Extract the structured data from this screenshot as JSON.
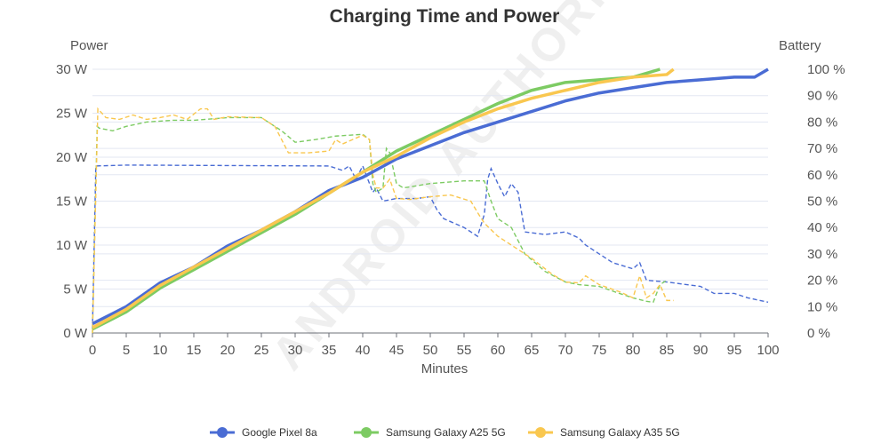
{
  "chart_data": {
    "type": "line",
    "title": "Charging Time and Power",
    "xlabel": "Minutes",
    "ylabel_left": "Power",
    "ylabel_right": "Battery",
    "xlim": [
      0,
      100
    ],
    "ylim_left": [
      0,
      30
    ],
    "ylim_right": [
      0,
      100
    ],
    "x_ticks": [
      "0",
      "5",
      "10",
      "15",
      "20",
      "25",
      "30",
      "35",
      "40",
      "45",
      "50",
      "55",
      "60",
      "65",
      "70",
      "75",
      "80",
      "85",
      "90",
      "95",
      "100"
    ],
    "left_ticks": [
      "0 W",
      "5 W",
      "10 W",
      "15 W",
      "20 W",
      "25 W",
      "30 W"
    ],
    "right_ticks": [
      "0 %",
      "10 %",
      "20 %",
      "30 %",
      "40 %",
      "50 %",
      "60 %",
      "70 %",
      "80 %",
      "90 %",
      "100 %"
    ],
    "grid": true,
    "legend_position": "bottom",
    "watermark": "ANDROID AUTHORITY",
    "series": [
      {
        "name": "Google Pixel 8a",
        "color": "#4a6cd4",
        "battery": [
          [
            0,
            3.5
          ],
          [
            5,
            10
          ],
          [
            10,
            19
          ],
          [
            15,
            25
          ],
          [
            20,
            33
          ],
          [
            25,
            39
          ],
          [
            30,
            46
          ],
          [
            35,
            54
          ],
          [
            40,
            59
          ],
          [
            45,
            66
          ],
          [
            50,
            71
          ],
          [
            55,
            76
          ],
          [
            60,
            80
          ],
          [
            65,
            84
          ],
          [
            70,
            88
          ],
          [
            75,
            91
          ],
          [
            80,
            93
          ],
          [
            85,
            95
          ],
          [
            90,
            96
          ],
          [
            95,
            97
          ],
          [
            98,
            97
          ],
          [
            100,
            100
          ]
        ],
        "power": [
          [
            0,
            0.5
          ],
          [
            0.5,
            19
          ],
          [
            5,
            19.1
          ],
          [
            35,
            19
          ],
          [
            37,
            18.5
          ],
          [
            38,
            19
          ],
          [
            39,
            17.5
          ],
          [
            40,
            19
          ],
          [
            41.5,
            16
          ],
          [
            42,
            16.5
          ],
          [
            43,
            15
          ],
          [
            45,
            15.3
          ],
          [
            48,
            15.3
          ],
          [
            50,
            15.5
          ],
          [
            51,
            14
          ],
          [
            52,
            13
          ],
          [
            55,
            12
          ],
          [
            57,
            11
          ],
          [
            58,
            13.5
          ],
          [
            58.5,
            17.5
          ],
          [
            59,
            18.7
          ],
          [
            60,
            17
          ],
          [
            61,
            15.5
          ],
          [
            62,
            17
          ],
          [
            63,
            16
          ],
          [
            64,
            11.5
          ],
          [
            67,
            11.2
          ],
          [
            70,
            11.5
          ],
          [
            72,
            10.8
          ],
          [
            73,
            10
          ],
          [
            75,
            9
          ],
          [
            77,
            8
          ],
          [
            80,
            7.3
          ],
          [
            81,
            8
          ],
          [
            82,
            6
          ],
          [
            85,
            5.8
          ],
          [
            90,
            5.3
          ],
          [
            92,
            4.5
          ],
          [
            95,
            4.5
          ],
          [
            97,
            4
          ],
          [
            100,
            3.5
          ]
        ]
      },
      {
        "name": "Samsung Galaxy A25 5G",
        "color": "#7dcb63",
        "battery": [
          [
            0,
            1.5
          ],
          [
            5,
            8
          ],
          [
            10,
            17
          ],
          [
            15,
            24
          ],
          [
            20,
            31
          ],
          [
            25,
            38
          ],
          [
            30,
            45
          ],
          [
            35,
            53
          ],
          [
            40,
            61
          ],
          [
            45,
            69
          ],
          [
            50,
            75
          ],
          [
            55,
            81
          ],
          [
            60,
            87
          ],
          [
            65,
            92
          ],
          [
            70,
            95
          ],
          [
            75,
            96
          ],
          [
            80,
            97
          ],
          [
            84,
            100
          ]
        ],
        "power": [
          [
            0,
            0
          ],
          [
            0.7,
            23.5
          ],
          [
            1,
            23.3
          ],
          [
            3,
            23
          ],
          [
            5,
            23.5
          ],
          [
            8,
            24
          ],
          [
            12,
            24.2
          ],
          [
            15,
            24.2
          ],
          [
            20,
            24.5
          ],
          [
            25,
            24.5
          ],
          [
            27,
            23.5
          ],
          [
            28,
            23
          ],
          [
            30,
            21.7
          ],
          [
            33,
            22
          ],
          [
            36,
            22.4
          ],
          [
            40,
            22.6
          ],
          [
            41,
            22
          ],
          [
            41.5,
            17
          ],
          [
            42,
            16
          ],
          [
            43,
            16.5
          ],
          [
            43.5,
            21
          ],
          [
            44,
            20.5
          ],
          [
            45,
            17
          ],
          [
            46,
            16.5
          ],
          [
            50,
            17
          ],
          [
            55,
            17.3
          ],
          [
            58,
            17.3
          ],
          [
            59,
            15
          ],
          [
            60,
            13
          ],
          [
            62,
            12
          ],
          [
            64,
            9
          ],
          [
            67,
            7
          ],
          [
            70,
            5.8
          ],
          [
            72,
            5.5
          ],
          [
            75,
            5.3
          ],
          [
            78,
            4.5
          ],
          [
            80,
            4
          ],
          [
            82,
            3.6
          ],
          [
            83,
            3.5
          ],
          [
            84,
            5.5
          ],
          [
            85,
            6
          ]
        ]
      },
      {
        "name": "Samsung Galaxy A35 5G",
        "color": "#f9c74f",
        "battery": [
          [
            0,
            2
          ],
          [
            5,
            9
          ],
          [
            10,
            18
          ],
          [
            15,
            25
          ],
          [
            20,
            32
          ],
          [
            25,
            39
          ],
          [
            30,
            46
          ],
          [
            35,
            53
          ],
          [
            40,
            61
          ],
          [
            45,
            67
          ],
          [
            50,
            74
          ],
          [
            55,
            80
          ],
          [
            60,
            85
          ],
          [
            65,
            89
          ],
          [
            70,
            92
          ],
          [
            75,
            95
          ],
          [
            80,
            97
          ],
          [
            85,
            98
          ],
          [
            86,
            100
          ]
        ],
        "power": [
          [
            0,
            0
          ],
          [
            0.8,
            25.5
          ],
          [
            2,
            24.5
          ],
          [
            4,
            24.3
          ],
          [
            6,
            24.8
          ],
          [
            8,
            24.3
          ],
          [
            10,
            24.5
          ],
          [
            12,
            24.8
          ],
          [
            14,
            24.3
          ],
          [
            16,
            25.5
          ],
          [
            17,
            25.5
          ],
          [
            18,
            24.3
          ],
          [
            20,
            24.6
          ],
          [
            25,
            24.5
          ],
          [
            27,
            23.5
          ],
          [
            28,
            22
          ],
          [
            29,
            20.5
          ],
          [
            32,
            20.5
          ],
          [
            35,
            20.7
          ],
          [
            36,
            22
          ],
          [
            37,
            21.5
          ],
          [
            40,
            22.5
          ],
          [
            41,
            22
          ],
          [
            41.5,
            18
          ],
          [
            42,
            16.5
          ],
          [
            43,
            16.5
          ],
          [
            44,
            17.5
          ],
          [
            45,
            15.3
          ],
          [
            47,
            15.2
          ],
          [
            50,
            15.5
          ],
          [
            53,
            15.7
          ],
          [
            56,
            15
          ],
          [
            57,
            13.7
          ],
          [
            58,
            12.5
          ],
          [
            60,
            11
          ],
          [
            62,
            10
          ],
          [
            65,
            8.5
          ],
          [
            68,
            6.7
          ],
          [
            70,
            5.8
          ],
          [
            72,
            5.7
          ],
          [
            73,
            6.5
          ],
          [
            75,
            5.5
          ],
          [
            78,
            4.7
          ],
          [
            80,
            4
          ],
          [
            81,
            6.5
          ],
          [
            82,
            4
          ],
          [
            83,
            4.5
          ],
          [
            84,
            5.5
          ],
          [
            85,
            3.7
          ],
          [
            86,
            3.7
          ]
        ]
      }
    ]
  }
}
